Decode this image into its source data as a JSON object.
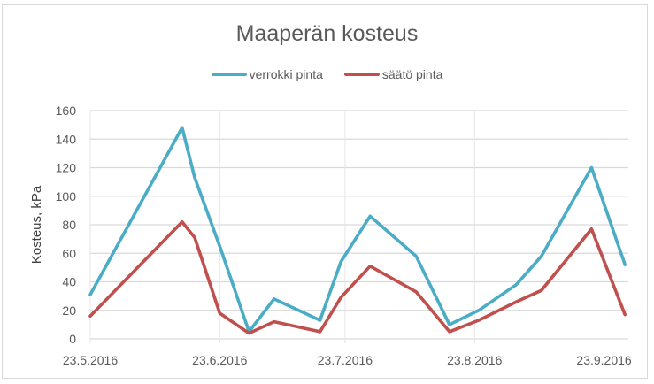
{
  "chart_data": {
    "type": "line",
    "title": "Maaperän kosteus",
    "xlabel": "",
    "ylabel": "Kosteus, kPa",
    "ylim": [
      0,
      160
    ],
    "yticks": [
      0,
      20,
      40,
      60,
      80,
      100,
      120,
      140,
      160
    ],
    "xticks": [
      "23.5.2016",
      "23.6.2016",
      "23.7.2016",
      "23.8.2016",
      "23.9.2016"
    ],
    "xtick_days": [
      0,
      31,
      61,
      92,
      123
    ],
    "xlim_days": [
      0,
      129
    ],
    "grid": {
      "horizontal": true,
      "vertical": true
    },
    "legend_position": "top",
    "x": [
      "23.5.2016",
      "14.6.2016",
      "17.6.2016",
      "23.6.2016",
      "30.6.2016",
      "6.7.2016",
      "17.7.2016",
      "22.7.2016",
      "29.7.2016",
      "9.8.2016",
      "17.8.2016",
      "24.8.2016",
      "2.9.2016",
      "8.9.2016",
      "20.9.2016",
      "28.9.2016"
    ],
    "x_days": [
      0,
      22,
      25,
      31,
      38,
      44,
      55,
      60,
      67,
      78,
      86,
      93,
      102,
      108,
      120,
      128
    ],
    "series": [
      {
        "name": "verrokki pinta",
        "color": "#4bacc6",
        "values": [
          31,
          148,
          113,
          65,
          5,
          28,
          13,
          54,
          86,
          58,
          10,
          20,
          38,
          58,
          120,
          52
        ]
      },
      {
        "name": "säätö pinta",
        "color": "#c0504d",
        "values": [
          16,
          82,
          71,
          18,
          4,
          12,
          5,
          29,
          51,
          33,
          5,
          13,
          26,
          34,
          77,
          17
        ]
      }
    ]
  }
}
